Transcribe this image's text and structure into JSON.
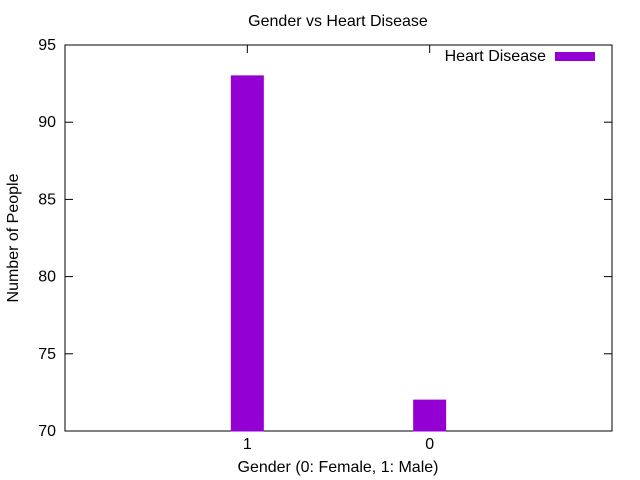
{
  "chart_data": {
    "type": "bar",
    "title": "Gender vs Heart Disease",
    "xlabel": "Gender (0: Female, 1: Male)",
    "ylabel": "Number of People",
    "categories": [
      "1",
      "0"
    ],
    "series": [
      {
        "name": "Heart Disease",
        "values": [
          93,
          72
        ],
        "color": "#9400d3"
      }
    ],
    "ylim": [
      70,
      95
    ],
    "yticks": [
      70,
      75,
      80,
      85,
      90,
      95
    ],
    "grid": false,
    "legend": "top-right"
  }
}
